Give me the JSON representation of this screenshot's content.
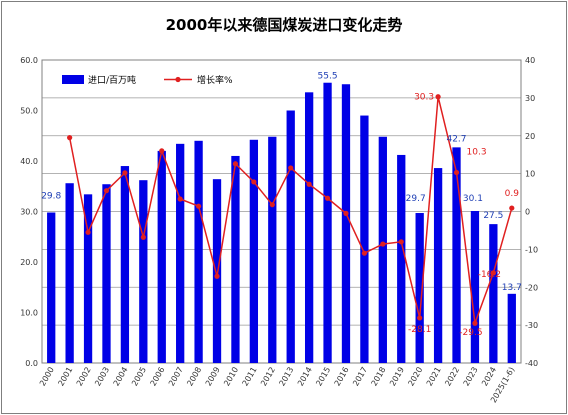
{
  "chart_data": {
    "type": "bar+line",
    "title": "2000年以来德国煤炭进口变化走势",
    "categories": [
      "2000",
      "2001",
      "2002",
      "2003",
      "2004",
      "2005",
      "2006",
      "2007",
      "2008",
      "2009",
      "2010",
      "2011",
      "2012",
      "2013",
      "2014",
      "2015",
      "2016",
      "2017",
      "2018",
      "2019",
      "2020",
      "2021",
      "2022",
      "2023",
      "2024",
      "2025(1-6)"
    ],
    "series": [
      {
        "name": "进口/百万吨",
        "type": "bar",
        "axis": "left",
        "color": "#0000e6",
        "values": [
          29.8,
          35.6,
          33.4,
          35.4,
          39.0,
          36.2,
          42.0,
          43.4,
          44.0,
          36.4,
          41.0,
          44.2,
          44.8,
          50.0,
          53.6,
          55.5,
          55.2,
          49.0,
          44.8,
          41.2,
          29.7,
          38.6,
          42.7,
          30.1,
          27.5,
          13.7
        ]
      },
      {
        "name": "增长率%",
        "type": "line",
        "axis": "right",
        "color": "#e02020",
        "values": [
          null,
          19.5,
          -5.5,
          5.5,
          10.2,
          -6.8,
          16.0,
          3.3,
          1.4,
          -17.1,
          12.6,
          7.8,
          1.8,
          11.5,
          7.2,
          3.5,
          -0.5,
          -11.0,
          -8.6,
          -8.0,
          -28.1,
          30.3,
          10.3,
          -29.5,
          -16.2,
          0.9
        ]
      }
    ],
    "bar_labels": [
      {
        "index": 0,
        "text": "29.8"
      },
      {
        "index": 15,
        "text": "55.5"
      },
      {
        "index": 20,
        "text": "29.7"
      },
      {
        "index": 22,
        "text": "42.7"
      },
      {
        "index": 23,
        "text": "30.1"
      },
      {
        "index": 24,
        "text": "27.5"
      },
      {
        "index": 25,
        "text": "13.7"
      }
    ],
    "line_labels": [
      {
        "index": 20,
        "text": "-28.1"
      },
      {
        "index": 21,
        "text": "30.3"
      },
      {
        "index": 22,
        "text": "10.3"
      },
      {
        "index": 23,
        "text": "-29.5"
      },
      {
        "index": 24,
        "text": "-16.2"
      },
      {
        "index": 25,
        "text": "0.9"
      }
    ],
    "y_left": {
      "min": 0,
      "max": 60,
      "step": 10,
      "ticks": [
        "0.0",
        "10.0",
        "20.0",
        "30.0",
        "40.0",
        "50.0",
        "60.0"
      ]
    },
    "y_right": {
      "min": -40,
      "max": 40,
      "step": 10,
      "ticks": [
        "-40",
        "-30",
        "-20",
        "-10",
        "0",
        "10",
        "20",
        "30",
        "40"
      ]
    },
    "grid": true,
    "legend_position": "top-left"
  }
}
